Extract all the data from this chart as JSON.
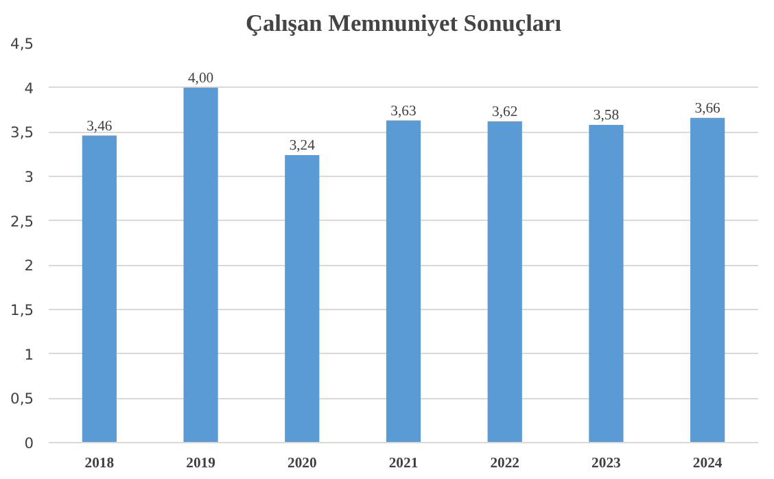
{
  "chart_data": {
    "type": "bar",
    "title": "Çalışan Memnuniyet Sonuçları",
    "categories": [
      "2018",
      "2019",
      "2020",
      "2021",
      "2022",
      "2023",
      "2024"
    ],
    "values": [
      3.46,
      4.0,
      3.24,
      3.63,
      3.62,
      3.58,
      3.66
    ],
    "value_labels": [
      "3,46",
      "4,00",
      "3,24",
      "3,63",
      "3,62",
      "3,58",
      "3,66"
    ],
    "color": "#5b9bd5",
    "ylim": [
      0,
      4.5
    ],
    "yticks": [
      0,
      {
        "value": 0.5,
        "label": "0,5"
      },
      1,
      {
        "value": 1.5,
        "label": "1,5"
      },
      2,
      {
        "value": 2.5,
        "label": "2,5"
      },
      3,
      {
        "value": 3.5,
        "label": "3,5"
      },
      4,
      {
        "value": 4.5,
        "label": "4,5"
      }
    ],
    "grid": "y"
  }
}
